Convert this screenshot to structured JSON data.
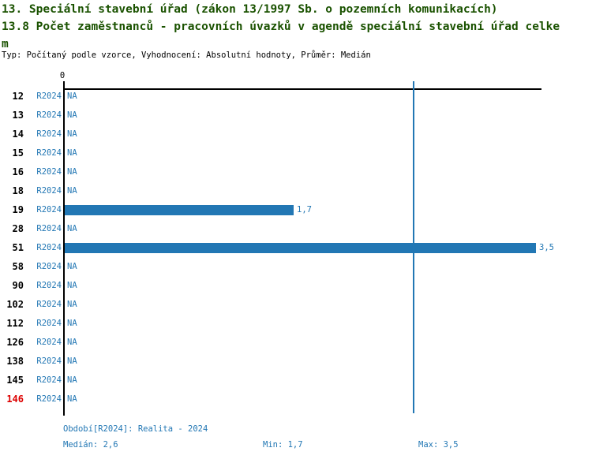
{
  "header": {
    "title_line1": "13. Speciální stavební úřad (zákon 13/1997 Sb. o pozemních komunikacích)",
    "title_line2": "13.8 Počet zaměstnanců - pracovních úvazků v agendě speciální stavební úřad celkem",
    "meta_line": "Typ: Počítaný podle vzorce, Vyhodnocení: Absolutní hodnoty, Průměr: Medián"
  },
  "chart_data": {
    "type": "bar",
    "orientation": "horizontal",
    "axis_zero_label": "0",
    "period_label": "R2024",
    "categories": [
      "12",
      "13",
      "14",
      "15",
      "16",
      "18",
      "19",
      "28",
      "51",
      "58",
      "90",
      "102",
      "112",
      "126",
      "138",
      "145",
      "146"
    ],
    "values": [
      null,
      null,
      null,
      null,
      null,
      null,
      1.7,
      null,
      3.5,
      null,
      null,
      null,
      null,
      null,
      null,
      null,
      null
    ],
    "value_labels": [
      "NA",
      "NA",
      "NA",
      "NA",
      "NA",
      "NA",
      "1,7",
      "NA",
      "3,5",
      "NA",
      "NA",
      "NA",
      "NA",
      "NA",
      "NA",
      "NA",
      "NA"
    ],
    "highlighted_category": "146",
    "median_value": 2.6,
    "min_value": 1.7,
    "max_value": 3.5,
    "xlim": [
      0,
      3.55
    ],
    "grid": false,
    "legend": "none"
  },
  "footer": {
    "period_line": "Období[R2024]: Realita - 2024",
    "median_label": "Medián: 2,6",
    "min_label": "Min: 1,7",
    "max_label": "Max: 3,5"
  },
  "colors": {
    "accent_blue": "#2277b4",
    "title_green": "#1a5200",
    "highlight_red": "#dd0000",
    "axis_black": "#000000"
  }
}
